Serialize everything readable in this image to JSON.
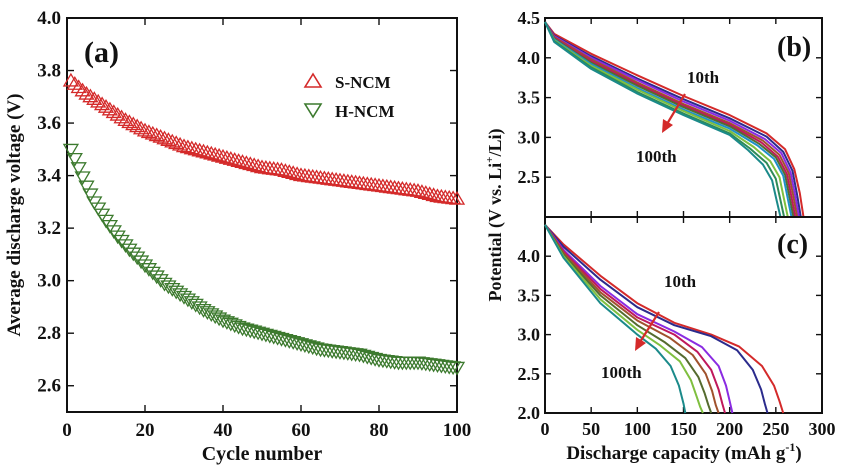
{
  "chart_data": [
    {
      "type": "scatter",
      "panel_label": "(a)",
      "xlabel": "Cycle number",
      "ylabel": "Average discharge voltage (V)",
      "xlim": [
        0,
        100
      ],
      "ylim": [
        2.5,
        4.0
      ],
      "xticks": [
        "0",
        "20",
        "40",
        "60",
        "80",
        "100"
      ],
      "yticks": [
        "2.6",
        "2.8",
        "3.0",
        "3.2",
        "3.4",
        "3.6",
        "3.8",
        "4.0"
      ],
      "legend_position": "top-right",
      "series": [
        {
          "name": "S-NCM",
          "marker": "triangle-up",
          "color": "#d42a2a",
          "x": [
            1,
            5,
            10,
            15,
            20,
            25,
            30,
            35,
            40,
            45,
            50,
            55,
            60,
            65,
            70,
            75,
            80,
            85,
            90,
            95,
            100
          ],
          "y": [
            3.76,
            3.71,
            3.66,
            3.61,
            3.57,
            3.54,
            3.51,
            3.49,
            3.47,
            3.45,
            3.43,
            3.42,
            3.4,
            3.39,
            3.38,
            3.37,
            3.36,
            3.35,
            3.34,
            3.32,
            3.31
          ]
        },
        {
          "name": "H-NCM",
          "marker": "triangle-down",
          "color": "#3c7a2e",
          "x": [
            1,
            3,
            5,
            7,
            10,
            13,
            16,
            20,
            25,
            30,
            35,
            40,
            45,
            50,
            55,
            60,
            65,
            70,
            75,
            80,
            85,
            90,
            95,
            100
          ],
          "y": [
            3.5,
            3.43,
            3.36,
            3.3,
            3.23,
            3.17,
            3.12,
            3.06,
            2.99,
            2.94,
            2.89,
            2.85,
            2.82,
            2.8,
            2.78,
            2.76,
            2.74,
            2.73,
            2.72,
            2.7,
            2.69,
            2.69,
            2.68,
            2.67
          ]
        }
      ]
    },
    {
      "type": "line",
      "panel_label": "(b)",
      "xlim": [
        0,
        300
      ],
      "ylim": [
        2.0,
        4.5
      ],
      "yticks": [
        "2.5",
        "3.0",
        "3.5",
        "4.0",
        "4.5"
      ],
      "annotations": [
        "10th",
        "100th"
      ],
      "series": [
        {
          "color": "#d42a2a",
          "x": [
            0,
            10,
            50,
            100,
            150,
            200,
            240,
            260,
            270,
            276,
            280
          ],
          "y": [
            4.45,
            4.3,
            4.05,
            3.78,
            3.52,
            3.28,
            3.05,
            2.85,
            2.6,
            2.3,
            2.0
          ]
        },
        {
          "color": "#2b2b8c",
          "x": [
            0,
            10,
            50,
            100,
            150,
            200,
            240,
            258,
            268,
            273,
            277
          ],
          "y": [
            4.45,
            4.28,
            4.02,
            3.74,
            3.48,
            3.24,
            3.01,
            2.82,
            2.58,
            2.28,
            2.0
          ]
        },
        {
          "color": "#8a2be2",
          "x": [
            0,
            10,
            50,
            100,
            150,
            200,
            238,
            256,
            266,
            271,
            275
          ],
          "y": [
            4.45,
            4.27,
            4.0,
            3.72,
            3.45,
            3.21,
            2.98,
            2.8,
            2.56,
            2.27,
            2.0
          ]
        },
        {
          "color": "#a0522d",
          "x": [
            0,
            10,
            50,
            100,
            150,
            200,
            236,
            254,
            264,
            269,
            273
          ],
          "y": [
            4.45,
            4.26,
            3.98,
            3.69,
            3.42,
            3.18,
            2.96,
            2.78,
            2.55,
            2.26,
            2.0
          ]
        },
        {
          "color": "#c0185b",
          "x": [
            0,
            10,
            50,
            100,
            150,
            200,
            234,
            252,
            262,
            267,
            271
          ],
          "y": [
            4.45,
            4.25,
            3.96,
            3.67,
            3.4,
            3.16,
            2.94,
            2.76,
            2.54,
            2.25,
            2.0
          ]
        },
        {
          "color": "#556b2f",
          "x": [
            0,
            10,
            50,
            100,
            150,
            200,
            232,
            250,
            260,
            265,
            269
          ],
          "y": [
            4.45,
            4.24,
            3.94,
            3.65,
            3.38,
            3.14,
            2.92,
            2.75,
            2.53,
            2.24,
            2.0
          ]
        },
        {
          "color": "#1e90c8",
          "x": [
            0,
            10,
            50,
            100,
            150,
            200,
            230,
            248,
            258,
            263,
            267
          ],
          "y": [
            4.45,
            4.23,
            3.92,
            3.62,
            3.35,
            3.11,
            2.9,
            2.73,
            2.52,
            2.23,
            2.0
          ]
        },
        {
          "color": "#7fbf3f",
          "x": [
            0,
            10,
            50,
            100,
            150,
            200,
            226,
            244,
            254,
            259,
            263
          ],
          "y": [
            4.45,
            4.22,
            3.9,
            3.6,
            3.33,
            3.08,
            2.88,
            2.7,
            2.5,
            2.22,
            2.0
          ]
        },
        {
          "color": "#2e8b57",
          "x": [
            0,
            10,
            50,
            100,
            150,
            200,
            222,
            240,
            250,
            255,
            259
          ],
          "y": [
            4.45,
            4.21,
            3.88,
            3.57,
            3.3,
            3.05,
            2.86,
            2.68,
            2.48,
            2.21,
            2.0
          ]
        },
        {
          "color": "#1b8a8a",
          "x": [
            0,
            10,
            50,
            100,
            150,
            200,
            220,
            236,
            246,
            251,
            255
          ],
          "y": [
            4.45,
            4.2,
            3.86,
            3.55,
            3.28,
            3.03,
            2.84,
            2.66,
            2.46,
            2.2,
            2.0
          ]
        }
      ]
    },
    {
      "type": "line",
      "panel_label": "(c)",
      "xlabel": "Discharge capacity (mAh g",
      "xlabel_sup": "-1",
      "xlabel_end": ")",
      "xlim": [
        0,
        300
      ],
      "ylim": [
        2.0,
        4.5
      ],
      "xticks": [
        "0",
        "50",
        "100",
        "150",
        "200",
        "250",
        "300"
      ],
      "yticks": [
        "2.0",
        "2.5",
        "3.0",
        "3.5",
        "4.0"
      ],
      "annotations": [
        "10th",
        "100th"
      ],
      "series": [
        {
          "color": "#d42a2a",
          "x": [
            0,
            20,
            60,
            100,
            140,
            180,
            210,
            235,
            248,
            254,
            258
          ],
          "y": [
            4.4,
            4.15,
            3.75,
            3.4,
            3.15,
            3.0,
            2.85,
            2.6,
            2.35,
            2.15,
            2.0
          ]
        },
        {
          "color": "#2b2b8c",
          "x": [
            0,
            20,
            60,
            100,
            140,
            180,
            208,
            225,
            234,
            238,
            241
          ],
          "y": [
            4.4,
            4.12,
            3.7,
            3.35,
            3.12,
            2.98,
            2.8,
            2.55,
            2.3,
            2.12,
            2.0
          ]
        },
        {
          "color": "#8a2be2",
          "x": [
            0,
            20,
            60,
            100,
            140,
            170,
            188,
            196,
            200,
            203
          ],
          "y": [
            4.4,
            4.08,
            3.62,
            3.26,
            3.04,
            2.84,
            2.6,
            2.35,
            2.15,
            2.0
          ]
        },
        {
          "color": "#c0185b",
          "x": [
            0,
            20,
            60,
            100,
            140,
            165,
            180,
            188,
            192,
            195
          ],
          "y": [
            4.4,
            4.06,
            3.58,
            3.22,
            3.0,
            2.78,
            2.55,
            2.3,
            2.12,
            2.0
          ]
        },
        {
          "color": "#a0522d",
          "x": [
            0,
            20,
            60,
            100,
            135,
            160,
            174,
            181,
            185,
            188
          ],
          "y": [
            4.4,
            4.04,
            3.54,
            3.18,
            2.96,
            2.74,
            2.5,
            2.28,
            2.1,
            2.0
          ]
        },
        {
          "color": "#556b2f",
          "x": [
            0,
            20,
            60,
            100,
            130,
            152,
            166,
            173,
            177,
            180
          ],
          "y": [
            4.4,
            4.02,
            3.5,
            3.12,
            2.9,
            2.7,
            2.46,
            2.25,
            2.1,
            2.0
          ]
        },
        {
          "color": "#7fbf3f",
          "x": [
            0,
            20,
            60,
            100,
            125,
            146,
            158,
            164,
            168,
            171
          ],
          "y": [
            4.4,
            4.0,
            3.45,
            3.06,
            2.86,
            2.66,
            2.42,
            2.22,
            2.08,
            2.0
          ]
        },
        {
          "color": "#1b8a8a",
          "x": [
            0,
            20,
            60,
            100,
            120,
            136,
            145,
            150,
            152
          ],
          "y": [
            4.4,
            3.98,
            3.4,
            3.0,
            2.82,
            2.6,
            2.35,
            2.12,
            2.0
          ]
        }
      ]
    }
  ],
  "shared_ylabel_right": "Potential (V vs. Li",
  "shared_ylabel_right_sup": "+",
  "shared_ylabel_right_end": "/Li)"
}
